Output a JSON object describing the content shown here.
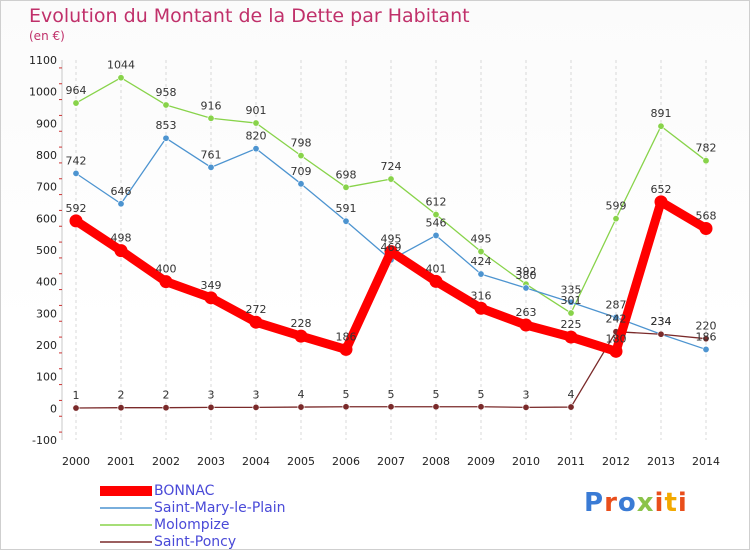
{
  "header": {
    "title": "Evolution du Montant de la Dette par Habitant",
    "unit": "(en €)"
  },
  "logo": {
    "text": "Proxiti",
    "letter_colors": [
      "#3a7bd5",
      "#e94e1b",
      "#3a7bd5",
      "#8bc34a",
      "#e94e1b",
      "#f2a900",
      "#e94e1b"
    ]
  },
  "chart_data": {
    "type": "line",
    "title": "Evolution du Montant de la Dette par Habitant",
    "ylabel": "(en €)",
    "x": [
      "2000",
      "2001",
      "2002",
      "2003",
      "2004",
      "2005",
      "2006",
      "2007",
      "2008",
      "2009",
      "2010",
      "2011",
      "2012",
      "2013",
      "2014"
    ],
    "ylim": [
      -100,
      1100
    ],
    "yticks": [
      -100,
      0,
      100,
      200,
      300,
      400,
      500,
      600,
      700,
      800,
      900,
      1000,
      1100
    ],
    "grid": "vertical dashed",
    "legend": "bottom-left",
    "series": [
      {
        "name": "BONNAC",
        "color": "#ff0000",
        "values": [
          592,
          498,
          400,
          349,
          272,
          228,
          186,
          495,
          401,
          316,
          263,
          225,
          180,
          652,
          568
        ]
      },
      {
        "name": "Saint-Mary-le-Plain",
        "color": "#4d94d0",
        "values": [
          742,
          646,
          853,
          761,
          820,
          709,
          591,
          469,
          546,
          424,
          380,
          335,
          287,
          234,
          186
        ]
      },
      {
        "name": "Molompize",
        "color": "#88d34a",
        "values": [
          964,
          1044,
          958,
          916,
          901,
          798,
          698,
          724,
          612,
          495,
          392,
          301,
          599,
          891,
          782
        ]
      },
      {
        "name": "Saint-Poncy",
        "color": "#7a2a2a",
        "values": [
          1,
          2,
          2,
          3,
          3,
          4,
          5,
          5,
          5,
          5,
          3,
          4,
          242,
          234,
          220
        ]
      }
    ]
  }
}
